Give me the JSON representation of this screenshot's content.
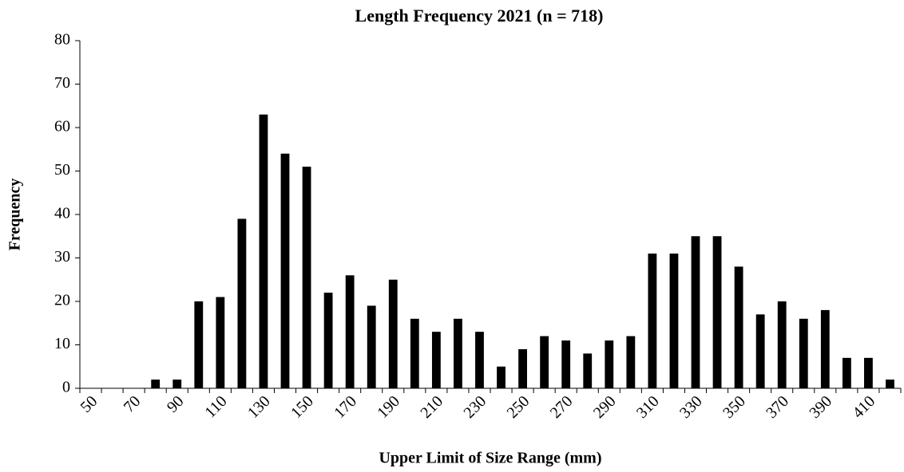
{
  "chart_data": {
    "type": "bar",
    "title": "Length Frequency 2021 (n = 718)",
    "xlabel": "Upper Limit of Size Range (mm)",
    "ylabel": "Frequency",
    "categories": [
      "50",
      null,
      "70",
      null,
      "90",
      null,
      "110",
      null,
      "130",
      null,
      "150",
      null,
      "170",
      null,
      "190",
      null,
      "210",
      null,
      "230",
      null,
      "250",
      null,
      "270",
      null,
      "290",
      null,
      "310",
      null,
      "330",
      null,
      "350",
      null,
      "370",
      null,
      "390",
      null,
      "410",
      null
    ],
    "values": [
      0,
      0,
      0,
      2,
      2,
      20,
      21,
      39,
      63,
      54,
      51,
      22,
      26,
      19,
      25,
      16,
      13,
      16,
      13,
      5,
      9,
      12,
      11,
      8,
      11,
      12,
      31,
      31,
      35,
      35,
      28,
      17,
      20,
      16,
      18,
      7,
      7,
      2
    ],
    "color": "#000000",
    "ylim": [
      0,
      80
    ],
    "yticks": [
      0,
      10,
      20,
      30,
      40,
      50,
      60,
      70,
      80
    ],
    "grid": false
  }
}
